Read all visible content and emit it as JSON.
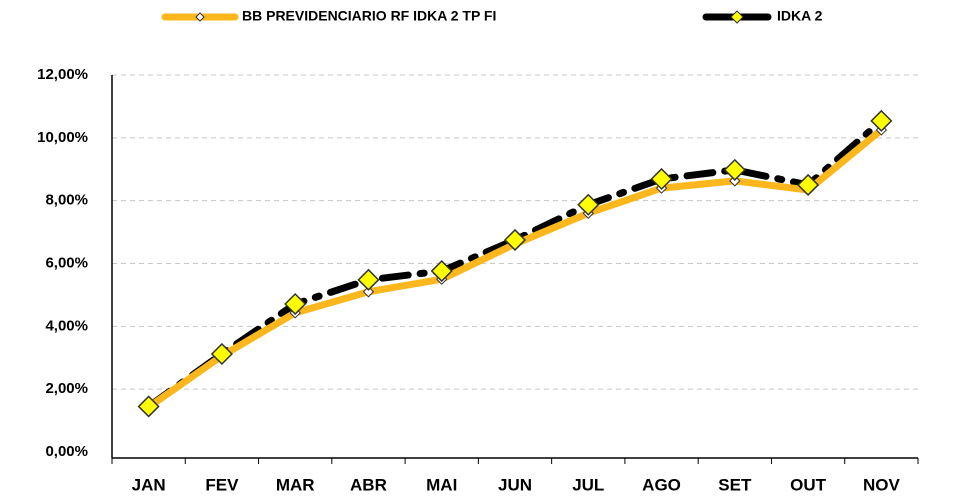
{
  "chart_data": {
    "type": "line",
    "categories": [
      "JAN",
      "FEV",
      "MAR",
      "ABR",
      "MAI",
      "JUN",
      "JUL",
      "AGO",
      "SET",
      "OUT",
      "NOV"
    ],
    "series": [
      {
        "name": "BB PREVIDENCIARIO RF IDKA 2 TP FI",
        "color": "#fbb71c",
        "marker_fill": "#ffffff",
        "values": [
          1.43,
          3.06,
          4.43,
          5.1,
          5.5,
          6.62,
          7.6,
          8.4,
          8.63,
          8.34,
          10.25
        ]
      },
      {
        "name": "IDKA 2",
        "color": "#000000",
        "marker_fill": "#ffff00",
        "values": [
          1.45,
          3.12,
          4.71,
          5.48,
          5.76,
          6.75,
          7.87,
          8.69,
          8.98,
          8.5,
          10.54
        ]
      }
    ],
    "ylim": [
      0,
      12
    ],
    "yticks": [
      {
        "value": 0,
        "label": "0,00%"
      },
      {
        "value": 2,
        "label": "2,00%"
      },
      {
        "value": 4,
        "label": "4,00%"
      },
      {
        "value": 6,
        "label": "6,00%"
      },
      {
        "value": 8,
        "label": "8,00%"
      },
      {
        "value": 10,
        "label": "10,00%"
      },
      {
        "value": 12,
        "label": "12,00%"
      }
    ],
    "grid": true
  }
}
